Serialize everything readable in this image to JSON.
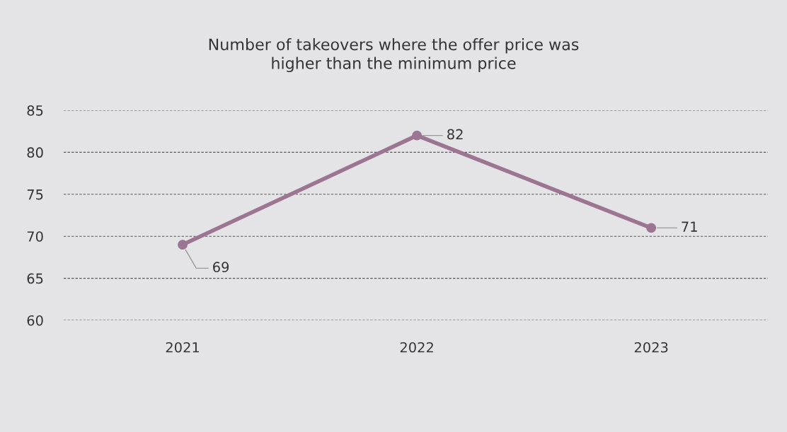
{
  "chart_data": {
    "type": "line",
    "title": "Number of takeovers where the offer price was\nhigher than the minimum price",
    "categories": [
      "2021",
      "2022",
      "2023"
    ],
    "series": [
      {
        "color": "#9b7592",
        "values": [
          69,
          82,
          71
        ]
      }
    ],
    "ylim": [
      60,
      85
    ],
    "yticks": [
      60,
      65,
      70,
      75,
      80,
      85
    ],
    "grid": "y",
    "marker": "circle",
    "line_style": "solid",
    "data_labels": true,
    "legend": false
  }
}
